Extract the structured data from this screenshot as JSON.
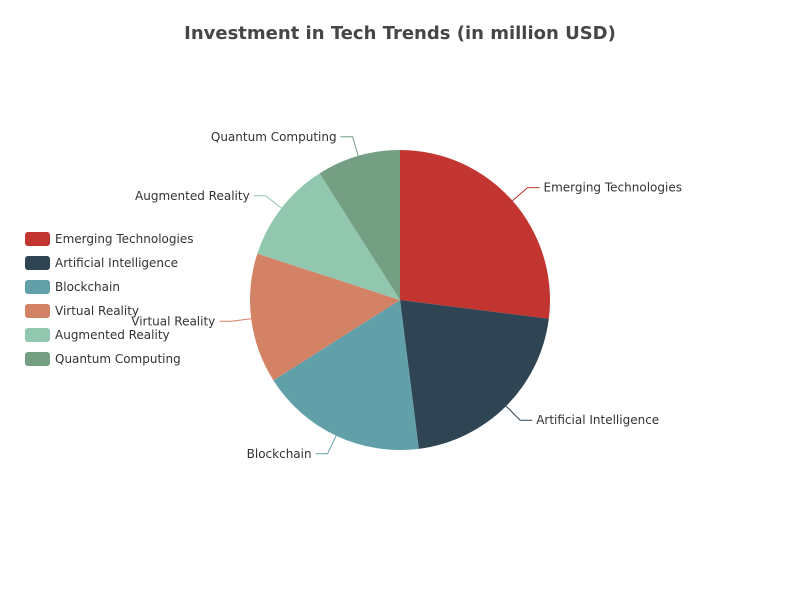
{
  "chart_data": {
    "type": "pie",
    "title": "Investment in Tech Trends (in million USD)",
    "legend_position": "left",
    "slices": [
      {
        "name": "Emerging Technologies",
        "value": 27,
        "color": "#c23531"
      },
      {
        "name": "Artificial Intelligence",
        "value": 21,
        "color": "#2f4554"
      },
      {
        "name": "Blockchain",
        "value": 18,
        "color": "#61a0a8"
      },
      {
        "name": "Virtual Reality",
        "value": 14,
        "color": "#d48265"
      },
      {
        "name": "Augmented Reality",
        "value": 11,
        "color": "#91c7ae"
      },
      {
        "name": "Quantum Computing",
        "value": 9,
        "color": "#749f83"
      }
    ]
  }
}
